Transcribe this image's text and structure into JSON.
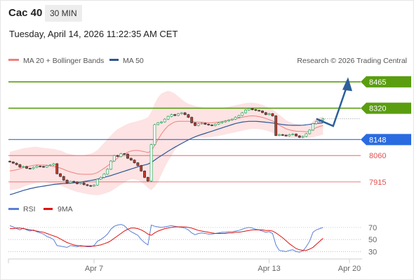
{
  "header": {
    "symbol": "Cac 40",
    "interval": "30 MIN",
    "datetime": "Tuesday, April 14, 2026 11:22:35 AM CET"
  },
  "colors": {
    "bollinger_fill": "#fde3e3",
    "ma20": "#f08080",
    "ma50": "#2e5597",
    "candle_up": "#27ae60",
    "candle_down": "#c0392b",
    "resistance": "#5a9e0f",
    "support": "#2a6be0",
    "level_red": "#e05050",
    "arrow": "#2e5f99",
    "rsi": "#5b7fd6",
    "rsi_ma": "#e01010"
  },
  "chart_data": [
    {
      "type": "candlestick",
      "legend": [
        {
          "name": "MA 20 + Bollinger Bands",
          "color": "#f08080"
        },
        {
          "name": "MA 50",
          "color": "#2e5597"
        }
      ],
      "credit": "Research © 2026 Trading Central",
      "ylim": [
        7830,
        8530
      ],
      "x_ticks": [
        {
          "label": "Apr 7",
          "index": 25
        },
        {
          "label": "Apr 13",
          "index": 77
        },
        {
          "label": "Apr 20",
          "index": 102
        }
      ],
      "levels": [
        {
          "value": 8465,
          "label": "8465",
          "style": "resistance",
          "tag": "filled"
        },
        {
          "value": 8320,
          "label": "8320",
          "style": "resistance",
          "tag": "filled"
        },
        {
          "value": 8148,
          "label": "8148",
          "style": "support",
          "tag": "filled"
        },
        {
          "value": 8060,
          "label": "8060",
          "style": "red",
          "tag": "text"
        },
        {
          "value": 7915,
          "label": "7915",
          "style": "red",
          "tag": "text"
        }
      ],
      "close": [
        8025,
        8018,
        8010,
        7996,
        8000,
        7990,
        7988,
        7995,
        8002,
        8000,
        7996,
        8005,
        8008,
        8015,
        7960,
        7945,
        7925,
        7910,
        7918,
        7915,
        7905,
        7910,
        7900,
        7895,
        7892,
        7898,
        7930,
        7940,
        7958,
        7985,
        8030,
        8060,
        8055,
        8070,
        8068,
        8045,
        8035,
        8020,
        8005,
        7975,
        7940,
        7920,
        8120,
        8230,
        8240,
        8245,
        8260,
        8275,
        8285,
        8280,
        8290,
        8295,
        8285,
        8270,
        8240,
        8225,
        8235,
        8238,
        8232,
        8228,
        8225,
        8232,
        8240,
        8245,
        8250,
        8255,
        8260,
        8270,
        8280,
        8295,
        8310,
        8318,
        8312,
        8308,
        8305,
        8296,
        8285,
        8290,
        8278,
        8170,
        8175,
        8172,
        8168,
        8175,
        8178,
        8168,
        8160,
        8165,
        8180,
        8200,
        8235,
        8248,
        8256,
        8262
      ],
      "bb_upper": [
        8080,
        8085,
        8090,
        8095,
        8100,
        8102,
        8105,
        8108,
        8108,
        8105,
        8102,
        8100,
        8098,
        8096,
        8092,
        8088,
        8080,
        8072,
        8068,
        8064,
        8060,
        8060,
        8062,
        8066,
        8070,
        8078,
        8090,
        8110,
        8130,
        8150,
        8170,
        8190,
        8205,
        8215,
        8225,
        8235,
        8240,
        8245,
        8250,
        8255,
        8262,
        8270,
        8300,
        8345,
        8380,
        8400,
        8410,
        8415,
        8410,
        8400,
        8385,
        8370,
        8355,
        8345,
        8338,
        8332,
        8328,
        8325,
        8322,
        8320,
        8318,
        8318,
        8320,
        8322,
        8325,
        8328,
        8332,
        8336,
        8340,
        8344,
        8348,
        8350,
        8350,
        8348,
        8344,
        8338,
        8330,
        8322,
        8314,
        8300,
        8284,
        8270,
        8255,
        8245,
        8238,
        8233,
        8230,
        8228,
        8226,
        8225,
        8250,
        8262,
        8270,
        8275
      ],
      "bb_lower": [
        7870,
        7872,
        7875,
        7880,
        7888,
        7895,
        7900,
        7905,
        7910,
        7912,
        7914,
        7912,
        7908,
        7905,
        7900,
        7895,
        7888,
        7880,
        7872,
        7866,
        7860,
        7856,
        7852,
        7848,
        7845,
        7843,
        7842,
        7845,
        7850,
        7856,
        7864,
        7875,
        7888,
        7900,
        7912,
        7922,
        7930,
        7930,
        7925,
        7915,
        7900,
        7882,
        7870,
        7888,
        7915,
        7955,
        7995,
        8030,
        8060,
        8090,
        8110,
        8125,
        8140,
        8150,
        8155,
        8158,
        8160,
        8160,
        8158,
        8160,
        8162,
        8165,
        8168,
        8172,
        8176,
        8180,
        8184,
        8188,
        8192,
        8196,
        8200,
        8204,
        8206,
        8206,
        8205,
        8202,
        8198,
        8192,
        8186,
        8178,
        8170,
        8165,
        8160,
        8158,
        8157,
        8156,
        8156,
        8156,
        8157,
        8158,
        8160,
        8165,
        8170,
        8175
      ],
      "ma20": [
        7975,
        7978,
        7982,
        7987,
        7994,
        7998,
        8002,
        8006,
        8009,
        8008,
        8008,
        8006,
        8003,
        8000,
        7996,
        7991,
        7984,
        7976,
        7970,
        7965,
        7960,
        7958,
        7957,
        7957,
        7957,
        7960,
        7966,
        7978,
        7990,
        8003,
        8017,
        8032,
        8046,
        8058,
        8068,
        8078,
        8085,
        8088,
        8088,
        8085,
        8081,
        8076,
        8085,
        8116,
        8148,
        8178,
        8203,
        8223,
        8235,
        8245,
        8248,
        8248,
        8248,
        8248,
        8247,
        8245,
        8244,
        8243,
        8240,
        8240,
        8240,
        8242,
        8244,
        8247,
        8250,
        8254,
        8258,
        8262,
        8266,
        8270,
        8274,
        8277,
        8278,
        8277,
        8274,
        8270,
        8264,
        8257,
        8250,
        8239,
        8227,
        8217,
        8207,
        8201,
        8197,
        8194,
        8193,
        8192,
        8191,
        8191,
        8205,
        8213,
        8220,
        8225
      ],
      "ma50": [
        7845,
        7850,
        7856,
        7862,
        7868,
        7873,
        7878,
        7882,
        7886,
        7889,
        7892,
        7895,
        7898,
        7901,
        7903,
        7905,
        7906,
        7907,
        7908,
        7910,
        7912,
        7914,
        7917,
        7920,
        7923,
        7926,
        7930,
        7935,
        7940,
        7945,
        7950,
        7956,
        7962,
        7968,
        7974,
        7980,
        7986,
        7992,
        7998,
        8003,
        8008,
        8013,
        8022,
        8035,
        8048,
        8060,
        8072,
        8084,
        8095,
        8106,
        8116,
        8126,
        8136,
        8146,
        8155,
        8163,
        8170,
        8176,
        8182,
        8188,
        8194,
        8200,
        8206,
        8212,
        8218,
        8224,
        8230,
        8236,
        8240,
        8244,
        8246,
        8248,
        8248,
        8248,
        8247,
        8245,
        8243,
        8241,
        8239,
        8236,
        8233,
        8230,
        8228,
        8227,
        8226,
        8226,
        8226,
        8227,
        8229,
        8231,
        8234,
        8236,
        8238,
        8240
      ],
      "projection": [
        [
          91,
          8262
        ],
        [
          96,
          8222
        ],
        [
          100,
          8460
        ]
      ]
    },
    {
      "type": "line",
      "legend": [
        {
          "name": "RSI",
          "color": "#5b7fd6"
        },
        {
          "name": "9MA",
          "color": "#e01010"
        }
      ],
      "ylim": [
        20,
        85
      ],
      "y_ticks": [
        30,
        50,
        70
      ],
      "rsi": [
        73,
        71,
        68,
        66,
        69,
        66,
        64,
        66,
        63,
        61,
        59,
        55,
        53,
        50,
        40,
        39,
        38,
        37,
        40,
        39,
        38,
        40,
        39,
        38,
        38,
        40,
        47,
        50,
        54,
        59,
        67,
        72,
        74,
        75,
        73,
        67,
        63,
        60,
        57,
        50,
        45,
        41,
        74,
        72,
        71,
        70,
        71,
        72,
        73,
        72,
        71,
        70,
        69,
        66,
        61,
        58,
        60,
        61,
        60,
        59,
        59,
        60,
        61,
        62,
        62,
        63,
        63,
        64,
        65,
        67,
        69,
        70,
        69,
        67,
        66,
        64,
        62,
        63,
        60,
        41,
        32,
        31,
        30,
        32,
        33,
        30,
        29,
        31,
        38,
        47,
        62,
        66,
        68,
        70
      ],
      "ma9": [
        68,
        68,
        69,
        69,
        68,
        67,
        66,
        65,
        64,
        63,
        62,
        60,
        58,
        56,
        54,
        51,
        48,
        45,
        43,
        41,
        40,
        39,
        39,
        39,
        39,
        39,
        40,
        41,
        43,
        45,
        48,
        52,
        56,
        60,
        64,
        67,
        69,
        69,
        68,
        66,
        63,
        59,
        57,
        61,
        64,
        66,
        68,
        69,
        70,
        71,
        71,
        71,
        71,
        70,
        69,
        67,
        65,
        64,
        63,
        62,
        61,
        60,
        60,
        60,
        60,
        61,
        61,
        62,
        62,
        63,
        64,
        65,
        66,
        66,
        66,
        66,
        65,
        65,
        64,
        61,
        57,
        53,
        48,
        43,
        39,
        35,
        33,
        32,
        32,
        34,
        37,
        42,
        47,
        52
      ]
    }
  ]
}
